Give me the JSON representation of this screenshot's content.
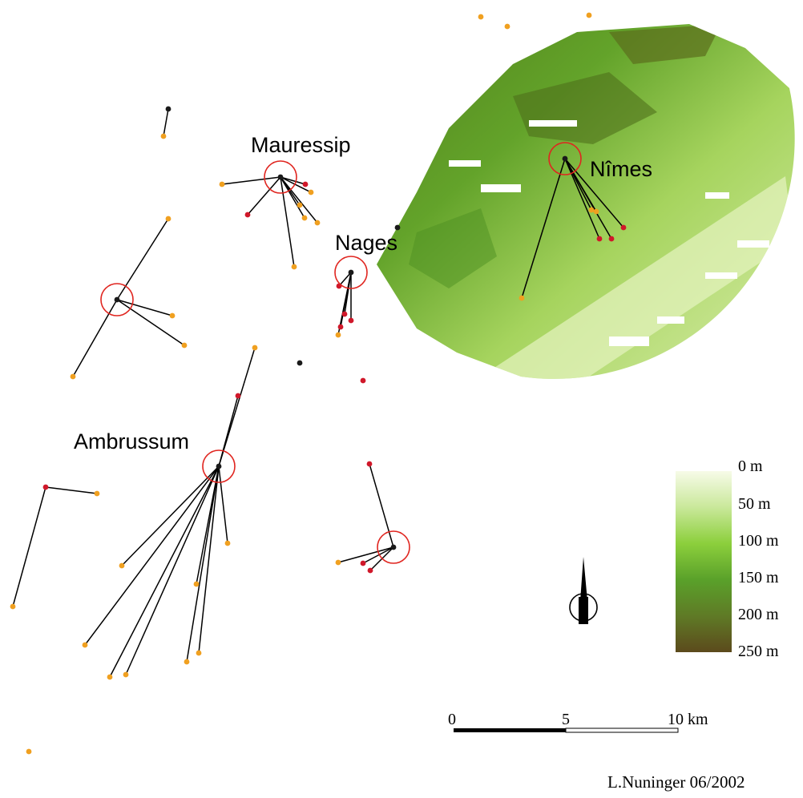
{
  "places": [
    {
      "name": "Mauressip"
    },
    {
      "name": "Nages"
    },
    {
      "name": "Nîmes"
    },
    {
      "name": "Ambrussum"
    }
  ],
  "legend": {
    "title": "",
    "classes": [
      {
        "label": "0 m",
        "color": "#f7fbe8"
      },
      {
        "label": "50 m",
        "color": "#c9e89a"
      },
      {
        "label": "100 m",
        "color": "#8ccf3c"
      },
      {
        "label": "150 m",
        "color": "#5aa12a"
      },
      {
        "label": "200 m",
        "color": "#5f7a26"
      },
      {
        "label": "250 m",
        "color": "#5c4a1c"
      }
    ]
  },
  "scale_bar": {
    "ticks": [
      "0",
      "5",
      "10 km"
    ]
  },
  "credit": "L.Nuninger 06/2002",
  "colors": {
    "centre_circle": "#e0251f",
    "site_orange": "#f0a020",
    "site_red": "#d0182a",
    "site_black": "#1a1a1a",
    "link_line": "#000000",
    "terrain_light": "#d6ec9c",
    "terrain_dark": "#4f7a1c"
  },
  "icons": {
    "north_arrow": "north-arrow-icon"
  }
}
